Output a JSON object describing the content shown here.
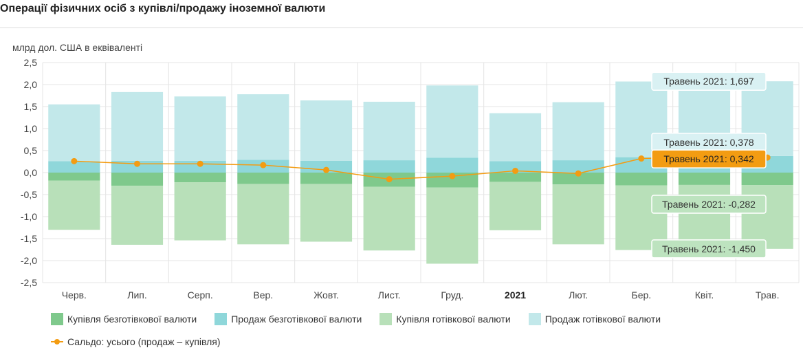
{
  "title": "Операції фізичних осіб з купівлі/продажу іноземної валюти",
  "colors": {
    "buy_noncash": "#7fc98c",
    "sell_noncash": "#8fd7da",
    "buy_cash": "#b8e0b9",
    "sell_cash": "#c2e8ea",
    "balance": "#f39c12",
    "grid": "#e4e4e4",
    "tooltip_light": "#d9f1f3",
    "tooltip_green": "#bde3bf",
    "tooltip_orange": "#f39c12"
  },
  "legend": {
    "buy_noncash": "Купівля безготівкової валюти",
    "sell_noncash": "Продаж безготівкової валюти",
    "buy_cash": "Купівля готівкової валюти",
    "sell_cash": "Продаж готівкової валюти",
    "balance": "Сальдо: усього (продаж – купівля)"
  },
  "chart_data": {
    "type": "bar",
    "title": "Операції фізичних осіб з купівлі/продажу іноземної валюти",
    "ylabel": "млрд дол. США в еквіваленті",
    "xlabel": "",
    "ylim": [
      -2.5,
      2.5
    ],
    "y_ticks": [
      "2,5",
      "2,0",
      "1,5",
      "1,0",
      "0,5",
      "0,0",
      "-0,5",
      "-1,0",
      "-1,5",
      "-2,0",
      "-2,5"
    ],
    "y_tick_values": [
      2.5,
      2.0,
      1.5,
      1.0,
      0.5,
      0.0,
      -0.5,
      -1.0,
      -1.5,
      -2.0,
      -2.5
    ],
    "categories": [
      "Черв.",
      "Лип.",
      "Серп.",
      "Вер.",
      "Жовт.",
      "Лист.",
      "Груд.",
      "2021",
      "Лют.",
      "Бер.",
      "Квіт.",
      "Трав."
    ],
    "bold_categories": [
      "2021"
    ],
    "grid": true,
    "stacked": true,
    "series": [
      {
        "name": "Купівля безготівкової валюти",
        "kind": "bar",
        "color": "#7fc98c",
        "values": [
          -0.18,
          -0.3,
          -0.22,
          -0.26,
          -0.26,
          -0.32,
          -0.34,
          -0.21,
          -0.27,
          -0.29,
          -0.28,
          -0.282
        ]
      },
      {
        "name": "Продаж безготівкової валюти",
        "kind": "bar",
        "color": "#8fd7da",
        "values": [
          0.26,
          0.27,
          0.27,
          0.29,
          0.27,
          0.28,
          0.34,
          0.26,
          0.28,
          0.35,
          0.36,
          0.378
        ]
      },
      {
        "name": "Купівля готівкової валюти",
        "kind": "bar",
        "color": "#b8e0b9",
        "values": [
          -1.12,
          -1.34,
          -1.32,
          -1.37,
          -1.31,
          -1.45,
          -1.73,
          -1.1,
          -1.36,
          -1.47,
          -1.45,
          -1.45
        ]
      },
      {
        "name": "Продаж готівкової валюти",
        "kind": "bar",
        "color": "#c2e8ea",
        "values": [
          1.29,
          1.56,
          1.46,
          1.49,
          1.37,
          1.33,
          1.64,
          1.09,
          1.32,
          1.72,
          1.72,
          1.697
        ]
      },
      {
        "name": "Сальдо: усього (продаж – купівля)",
        "kind": "line",
        "color": "#f39c12",
        "values": [
          0.26,
          0.2,
          0.2,
          0.17,
          0.06,
          -0.15,
          -0.08,
          0.04,
          -0.02,
          0.32,
          0.35,
          0.342
        ]
      }
    ],
    "tooltip": {
      "category": "Трав.",
      "labels": [
        {
          "text": "Травень 2021: 1,697",
          "series": "Продаж готівкової валюти",
          "style": "light"
        },
        {
          "text": "Травень 2021: 0,378",
          "series": "Продаж безготівкової валюти",
          "style": "light"
        },
        {
          "text": "Травень 2021: 0,342",
          "series": "Сальдо: усього (продаж – купівля)",
          "style": "orange"
        },
        {
          "text": "Травень 2021: -0,282",
          "series": "Купівля безготівкової валюти",
          "style": "green"
        },
        {
          "text": "Травень 2021: -1,450",
          "series": "Купівля готівкової валюти",
          "style": "green"
        }
      ]
    }
  }
}
